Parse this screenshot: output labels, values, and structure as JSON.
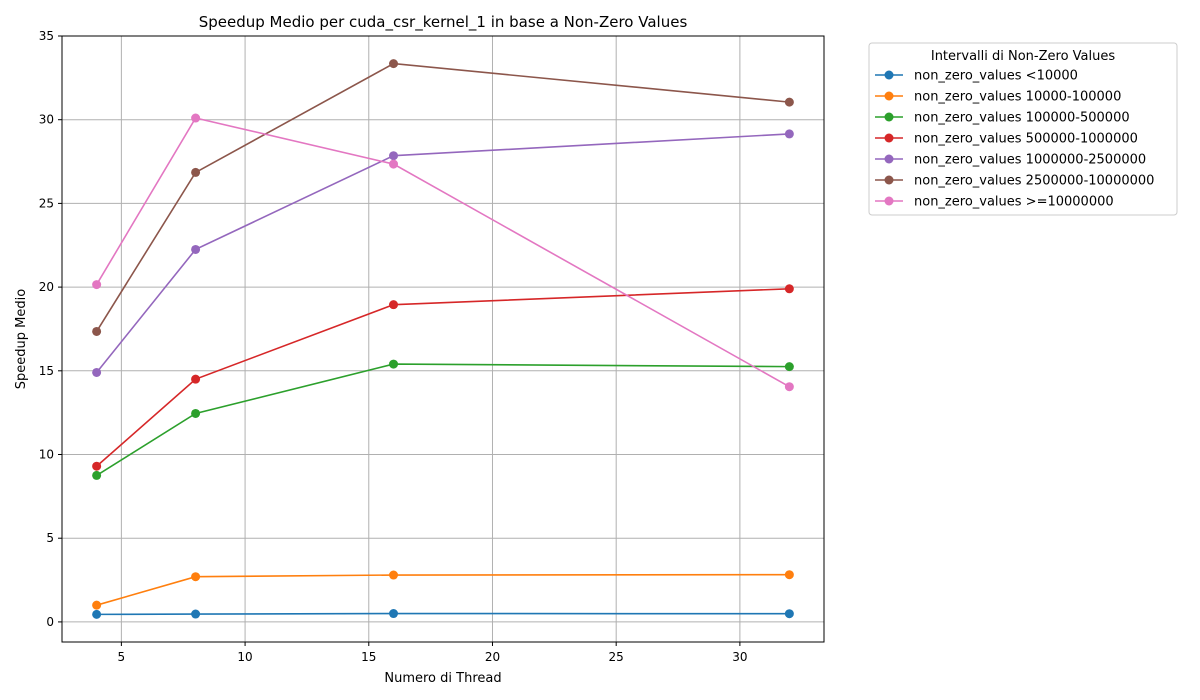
{
  "chart_data": {
    "type": "line",
    "title": "Speedup Medio per cuda_csr_kernel_1 in base a Non-Zero Values",
    "xlabel": "Numero di Thread",
    "ylabel": "Speedup Medio",
    "xlim": [
      2.6,
      33.4
    ],
    "ylim": [
      -1.2,
      35
    ],
    "xticks": [
      5,
      10,
      15,
      20,
      25,
      30
    ],
    "yticks": [
      0,
      5,
      10,
      15,
      20,
      25,
      30,
      35
    ],
    "grid": true,
    "legend": {
      "title": "Intervalli di Non-Zero Values",
      "placement": "outside-upper-right"
    },
    "x": [
      4,
      8,
      16,
      32
    ],
    "series": [
      {
        "name": "non_zero_values <10000",
        "color": "#1f77b4",
        "values": [
          0.45,
          0.47,
          0.5,
          0.49
        ]
      },
      {
        "name": "non_zero_values 10000-100000",
        "color": "#ff7f0e",
        "values": [
          1.0,
          2.7,
          2.8,
          2.82
        ]
      },
      {
        "name": "non_zero_values 100000-500000",
        "color": "#2ca02c",
        "values": [
          8.75,
          12.45,
          15.4,
          15.25
        ]
      },
      {
        "name": "non_zero_values 500000-1000000",
        "color": "#d62728",
        "values": [
          9.3,
          14.5,
          18.95,
          19.9
        ]
      },
      {
        "name": "non_zero_values 1000000-2500000",
        "color": "#9467bd",
        "values": [
          14.9,
          22.25,
          27.85,
          29.15
        ]
      },
      {
        "name": "non_zero_values 2500000-10000000",
        "color": "#8c564b",
        "values": [
          17.35,
          26.85,
          33.35,
          31.05
        ]
      },
      {
        "name": "non_zero_values >=10000000",
        "color": "#e377c2",
        "values": [
          20.15,
          30.1,
          27.35,
          14.05
        ]
      }
    ]
  }
}
